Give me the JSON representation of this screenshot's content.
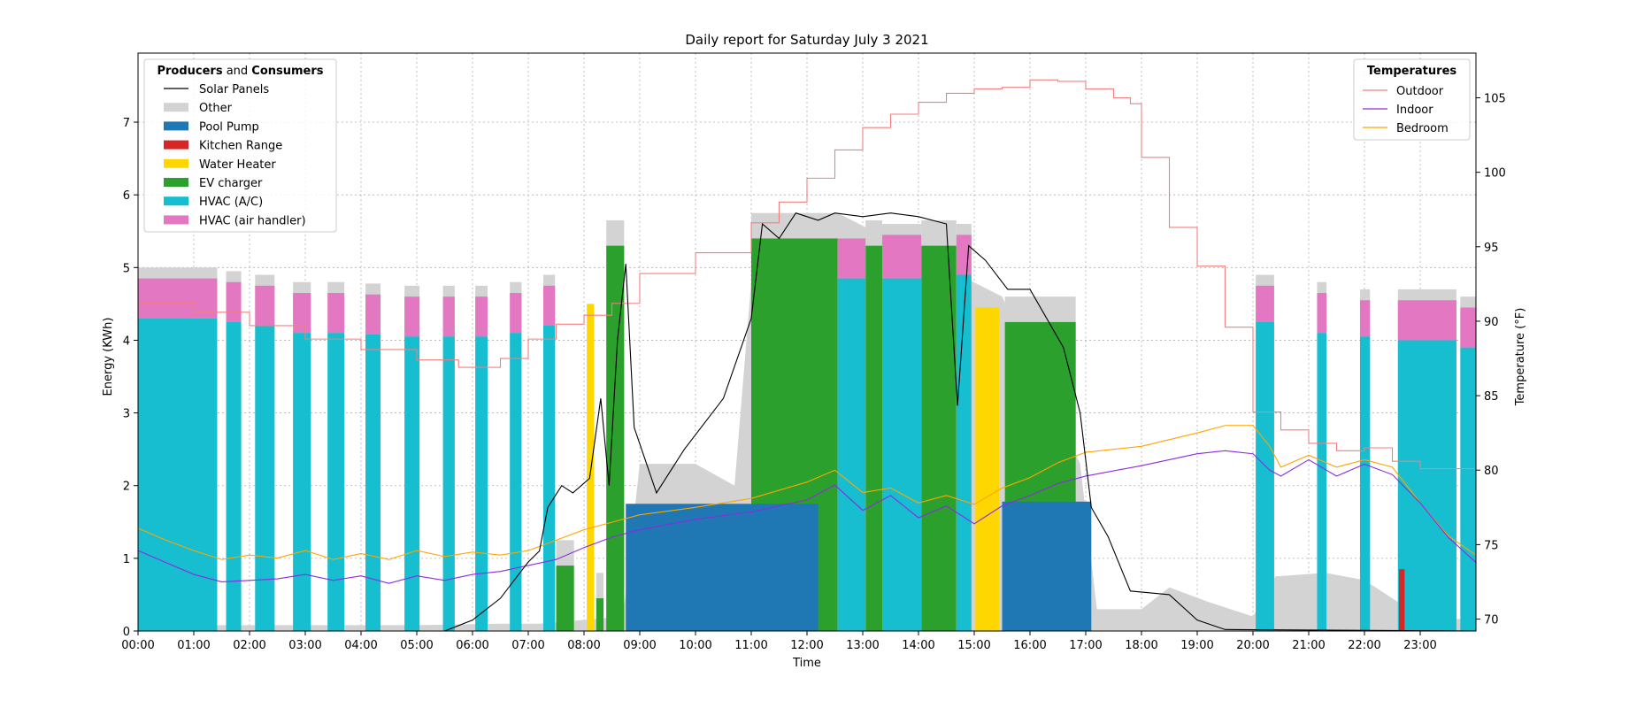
{
  "chart_data": {
    "type": "area",
    "title": "Daily report for Saturday July 3 2021",
    "xlabel": "Time",
    "ylabel": "Energy (KWh)",
    "y2label": "Temperature (°F)",
    "xlim": [
      0,
      24
    ],
    "ylim": [
      0,
      7.95
    ],
    "y2lim": [
      69.2,
      108
    ],
    "grid": true,
    "x_ticks": [
      {
        "v": 0,
        "label": "00:00"
      },
      {
        "v": 1,
        "label": "01:00"
      },
      {
        "v": 2,
        "label": "02:00"
      },
      {
        "v": 3,
        "label": "03:00"
      },
      {
        "v": 4,
        "label": "04:00"
      },
      {
        "v": 5,
        "label": "05:00"
      },
      {
        "v": 6,
        "label": "06:00"
      },
      {
        "v": 7,
        "label": "07:00"
      },
      {
        "v": 8,
        "label": "08:00"
      },
      {
        "v": 9,
        "label": "09:00"
      },
      {
        "v": 10,
        "label": "10:00"
      },
      {
        "v": 11,
        "label": "11:00"
      },
      {
        "v": 12,
        "label": "12:00"
      },
      {
        "v": 13,
        "label": "13:00"
      },
      {
        "v": 14,
        "label": "14:00"
      },
      {
        "v": 15,
        "label": "15:00"
      },
      {
        "v": 16,
        "label": "16:00"
      },
      {
        "v": 17,
        "label": "17:00"
      },
      {
        "v": 18,
        "label": "18:00"
      },
      {
        "v": 19,
        "label": "19:00"
      },
      {
        "v": 20,
        "label": "20:00"
      },
      {
        "v": 21,
        "label": "21:00"
      },
      {
        "v": 22,
        "label": "22:00"
      },
      {
        "v": 23,
        "label": "23:00"
      }
    ],
    "y_ticks": [
      {
        "v": 0,
        "label": "0"
      },
      {
        "v": 1,
        "label": "1"
      },
      {
        "v": 2,
        "label": "2"
      },
      {
        "v": 3,
        "label": "3"
      },
      {
        "v": 4,
        "label": "4"
      },
      {
        "v": 5,
        "label": "5"
      },
      {
        "v": 6,
        "label": "6"
      },
      {
        "v": 7,
        "label": "7"
      }
    ],
    "y2_ticks": [
      {
        "v": 70,
        "label": "70"
      },
      {
        "v": 75,
        "label": "75"
      },
      {
        "v": 80,
        "label": "80"
      },
      {
        "v": 85,
        "label": "85"
      },
      {
        "v": 90,
        "label": "90"
      },
      {
        "v": 95,
        "label": "95"
      },
      {
        "v": 100,
        "label": "100"
      },
      {
        "v": 105,
        "label": "105"
      }
    ],
    "legend_energy": {
      "placement": "top-left",
      "title_parts": [
        {
          "text": "Producers",
          "bold": true
        },
        {
          "text": " and ",
          "bold": false
        },
        {
          "text": "Consumers",
          "bold": true
        }
      ],
      "entries": [
        {
          "label": "Solar Panels",
          "kind": "line",
          "color": "#000000"
        },
        {
          "label": "Other",
          "kind": "patch",
          "color": "#d3d3d3"
        },
        {
          "label": "Pool Pump",
          "kind": "patch",
          "color": "#1f77b4"
        },
        {
          "label": "Kitchen Range",
          "kind": "patch",
          "color": "#d62728"
        },
        {
          "label": "Water Heater",
          "kind": "patch",
          "color": "#ffd700"
        },
        {
          "label": "EV charger",
          "kind": "patch",
          "color": "#2ca02c"
        },
        {
          "label": "HVAC (A/C)",
          "kind": "patch",
          "color": "#17becf"
        },
        {
          "label": "HVAC (air handler)",
          "kind": "patch",
          "color": "#e377c2"
        }
      ]
    },
    "legend_temp": {
      "placement": "top-right",
      "title": "Temperatures",
      "entries": [
        {
          "label": "Outdoor",
          "kind": "line",
          "color": "#f08080"
        },
        {
          "label": "Indoor",
          "kind": "line",
          "color": "#8a2be2"
        },
        {
          "label": "Bedroom",
          "kind": "line",
          "color": "#ffa500"
        }
      ]
    },
    "hvac_cycles": [
      [
        0.0,
        1.42,
        4.3,
        0.55
      ],
      [
        1.58,
        1.85,
        4.25,
        0.55
      ],
      [
        2.1,
        2.45,
        4.2,
        0.55
      ],
      [
        2.78,
        3.1,
        4.1,
        0.55
      ],
      [
        3.4,
        3.7,
        4.1,
        0.55
      ],
      [
        4.08,
        4.35,
        4.08,
        0.55
      ],
      [
        4.78,
        5.05,
        4.05,
        0.55
      ],
      [
        5.47,
        5.68,
        4.05,
        0.55
      ],
      [
        6.05,
        6.27,
        4.05,
        0.55
      ],
      [
        6.67,
        6.88,
        4.1,
        0.55
      ],
      [
        7.27,
        7.48,
        4.2,
        0.55
      ],
      [
        12.55,
        13.05,
        4.85,
        0.55
      ],
      [
        13.35,
        14.05,
        4.85,
        0.6
      ],
      [
        14.68,
        14.95,
        4.9,
        0.55
      ],
      [
        20.05,
        20.38,
        4.25,
        0.5
      ],
      [
        21.15,
        21.32,
        4.1,
        0.55
      ],
      [
        21.92,
        22.1,
        4.05,
        0.5
      ],
      [
        22.6,
        23.65,
        4.0,
        0.55
      ],
      [
        23.72,
        24.0,
        3.9,
        0.55
      ]
    ],
    "ev_blocks": [
      [
        7.5,
        7.82,
        0.9
      ],
      [
        8.22,
        8.35,
        0.45
      ],
      [
        8.4,
        8.72,
        5.3
      ],
      [
        11.0,
        12.55,
        5.4
      ],
      [
        13.05,
        13.35,
        5.3
      ],
      [
        14.05,
        14.68,
        5.3
      ],
      [
        15.55,
        16.82,
        4.25
      ]
    ],
    "water_heater": [
      [
        8.05,
        8.18,
        4.5
      ],
      [
        15.02,
        15.45,
        4.45
      ]
    ],
    "pool_pump": [
      [
        8.75,
        12.2,
        1.75
      ],
      [
        15.5,
        17.1,
        1.78
      ]
    ],
    "kitchen_range": [
      [
        22.62,
        22.72,
        0.85
      ]
    ],
    "outdoor_temp": [
      [
        0,
        91.2
      ],
      [
        1,
        90.6
      ],
      [
        2,
        89.7
      ],
      [
        3,
        88.8
      ],
      [
        4,
        88.1
      ],
      [
        5,
        87.4
      ],
      [
        5.75,
        86.9
      ],
      [
        6.5,
        87.5
      ],
      [
        7,
        88.8
      ],
      [
        7.5,
        89.8
      ],
      [
        8,
        90.4
      ],
      [
        8.5,
        91.2
      ],
      [
        9,
        93.2
      ],
      [
        10,
        94.6
      ],
      [
        11,
        96.6
      ],
      [
        11.5,
        98.0
      ],
      [
        12,
        99.6
      ],
      [
        12.5,
        101.5
      ],
      [
        13,
        103.0
      ],
      [
        13.5,
        103.9
      ],
      [
        14,
        104.7
      ],
      [
        14.5,
        105.3
      ],
      [
        15,
        105.6
      ],
      [
        15.5,
        105.7
      ],
      [
        16,
        106.2
      ],
      [
        16.5,
        106.1
      ],
      [
        17,
        105.6
      ],
      [
        17.5,
        105.0
      ],
      [
        17.8,
        104.6
      ],
      [
        18,
        101.0
      ],
      [
        18.5,
        96.3
      ],
      [
        19,
        93.7
      ],
      [
        19.5,
        89.6
      ],
      [
        20,
        83.9
      ],
      [
        20.5,
        82.7
      ],
      [
        21,
        81.8
      ],
      [
        21.5,
        81.3
      ],
      [
        22,
        81.5
      ],
      [
        22.5,
        80.6
      ],
      [
        23,
        80.1
      ],
      [
        23.5,
        80.1
      ],
      [
        24,
        80.4
      ]
    ],
    "indoor_temp": [
      [
        0,
        74.6
      ],
      [
        0.5,
        73.8
      ],
      [
        1,
        73.0
      ],
      [
        1.5,
        72.5
      ],
      [
        2,
        72.6
      ],
      [
        2.5,
        72.7
      ],
      [
        3,
        73.0
      ],
      [
        3.5,
        72.6
      ],
      [
        4,
        72.9
      ],
      [
        4.5,
        72.4
      ],
      [
        5,
        72.9
      ],
      [
        5.5,
        72.6
      ],
      [
        6,
        73.0
      ],
      [
        6.5,
        73.2
      ],
      [
        7,
        73.6
      ],
      [
        7.5,
        74.0
      ],
      [
        8,
        74.8
      ],
      [
        8.5,
        75.5
      ],
      [
        9,
        76.0
      ],
      [
        10,
        76.7
      ],
      [
        11,
        77.2
      ],
      [
        12,
        78.0
      ],
      [
        12.5,
        79.0
      ],
      [
        13,
        77.3
      ],
      [
        13.5,
        78.3
      ],
      [
        14,
        76.8
      ],
      [
        14.5,
        77.6
      ],
      [
        15,
        76.4
      ],
      [
        15.5,
        77.6
      ],
      [
        16,
        78.3
      ],
      [
        16.5,
        79.1
      ],
      [
        17,
        79.6
      ],
      [
        18,
        80.3
      ],
      [
        19,
        81.1
      ],
      [
        19.5,
        81.3
      ],
      [
        20,
        81.1
      ],
      [
        20.3,
        80.0
      ],
      [
        20.5,
        79.6
      ],
      [
        21,
        80.7
      ],
      [
        21.5,
        79.6
      ],
      [
        22,
        80.4
      ],
      [
        22.5,
        79.7
      ],
      [
        23,
        77.8
      ],
      [
        23.5,
        75.5
      ],
      [
        24,
        73.8
      ]
    ],
    "bedroom_temp": [
      [
        0,
        76.1
      ],
      [
        0.5,
        75.3
      ],
      [
        1,
        74.6
      ],
      [
        1.5,
        74.0
      ],
      [
        2,
        74.3
      ],
      [
        2.5,
        74.1
      ],
      [
        3,
        74.6
      ],
      [
        3.5,
        74.0
      ],
      [
        4,
        74.4
      ],
      [
        4.5,
        74.0
      ],
      [
        5,
        74.6
      ],
      [
        5.5,
        74.2
      ],
      [
        6,
        74.5
      ],
      [
        6.5,
        74.3
      ],
      [
        7,
        74.6
      ],
      [
        7.5,
        75.3
      ],
      [
        8,
        76.0
      ],
      [
        8.5,
        76.5
      ],
      [
        9,
        77.0
      ],
      [
        10,
        77.5
      ],
      [
        11,
        78.1
      ],
      [
        12,
        79.2
      ],
      [
        12.5,
        80.0
      ],
      [
        13,
        78.5
      ],
      [
        13.5,
        78.8
      ],
      [
        14,
        77.8
      ],
      [
        14.5,
        78.3
      ],
      [
        15,
        77.7
      ],
      [
        15.5,
        78.8
      ],
      [
        16,
        79.5
      ],
      [
        16.5,
        80.5
      ],
      [
        17,
        81.2
      ],
      [
        18,
        81.6
      ],
      [
        19,
        82.5
      ],
      [
        19.5,
        83.0
      ],
      [
        20,
        83.0
      ],
      [
        20.3,
        81.6
      ],
      [
        20.5,
        80.2
      ],
      [
        21,
        81.0
      ],
      [
        21.5,
        80.2
      ],
      [
        22,
        80.7
      ],
      [
        22.5,
        80.2
      ],
      [
        23,
        77.8
      ],
      [
        23.5,
        75.6
      ],
      [
        24,
        74.3
      ]
    ],
    "solar_panels": [
      [
        0,
        0
      ],
      [
        5.5,
        0
      ],
      [
        6,
        0.15
      ],
      [
        6.5,
        0.45
      ],
      [
        7,
        0.95
      ],
      [
        7.2,
        1.1
      ],
      [
        7.35,
        1.7
      ],
      [
        7.6,
        2.0
      ],
      [
        7.8,
        1.9
      ],
      [
        8.1,
        2.1
      ],
      [
        8.3,
        3.2
      ],
      [
        8.45,
        2.0
      ],
      [
        8.6,
        4.0
      ],
      [
        8.75,
        5.05
      ],
      [
        8.9,
        2.8
      ],
      [
        9.3,
        1.9
      ],
      [
        9.8,
        2.5
      ],
      [
        10.2,
        2.9
      ],
      [
        10.5,
        3.2
      ],
      [
        11.0,
        4.3
      ],
      [
        11.2,
        5.6
      ],
      [
        11.5,
        5.4
      ],
      [
        11.8,
        5.75
      ],
      [
        12.2,
        5.65
      ],
      [
        12.5,
        5.75
      ],
      [
        13,
        5.7
      ],
      [
        13.5,
        5.75
      ],
      [
        14,
        5.7
      ],
      [
        14.5,
        5.6
      ],
      [
        14.7,
        3.1
      ],
      [
        14.9,
        5.3
      ],
      [
        15.2,
        5.1
      ],
      [
        15.6,
        4.7
      ],
      [
        16,
        4.7
      ],
      [
        16.3,
        4.3
      ],
      [
        16.6,
        3.9
      ],
      [
        16.9,
        3.0
      ],
      [
        17.1,
        1.7
      ],
      [
        17.4,
        1.3
      ],
      [
        17.8,
        0.55
      ],
      [
        18.5,
        0.5
      ],
      [
        19.0,
        0.15
      ],
      [
        19.5,
        0.02
      ],
      [
        24,
        0
      ]
    ],
    "other_baseline": [
      [
        0,
        0.08
      ],
      [
        5,
        0.08
      ],
      [
        6.5,
        0.1
      ],
      [
        7.2,
        0.1
      ],
      [
        8.7,
        0.2
      ],
      [
        9.0,
        2.3
      ],
      [
        10.0,
        2.3
      ],
      [
        10.7,
        2.0
      ],
      [
        11.0,
        4.8
      ],
      [
        12.55,
        5.75
      ],
      [
        15.5,
        4.6
      ],
      [
        16.9,
        2.3
      ],
      [
        17.2,
        0.3
      ],
      [
        18.0,
        0.3
      ],
      [
        18.5,
        0.6
      ],
      [
        19.2,
        0.4
      ],
      [
        20.0,
        0.2
      ],
      [
        20.4,
        0.75
      ],
      [
        21.3,
        0.8
      ],
      [
        22.0,
        0.7
      ],
      [
        23.0,
        0.2
      ],
      [
        24,
        0.15
      ]
    ]
  }
}
